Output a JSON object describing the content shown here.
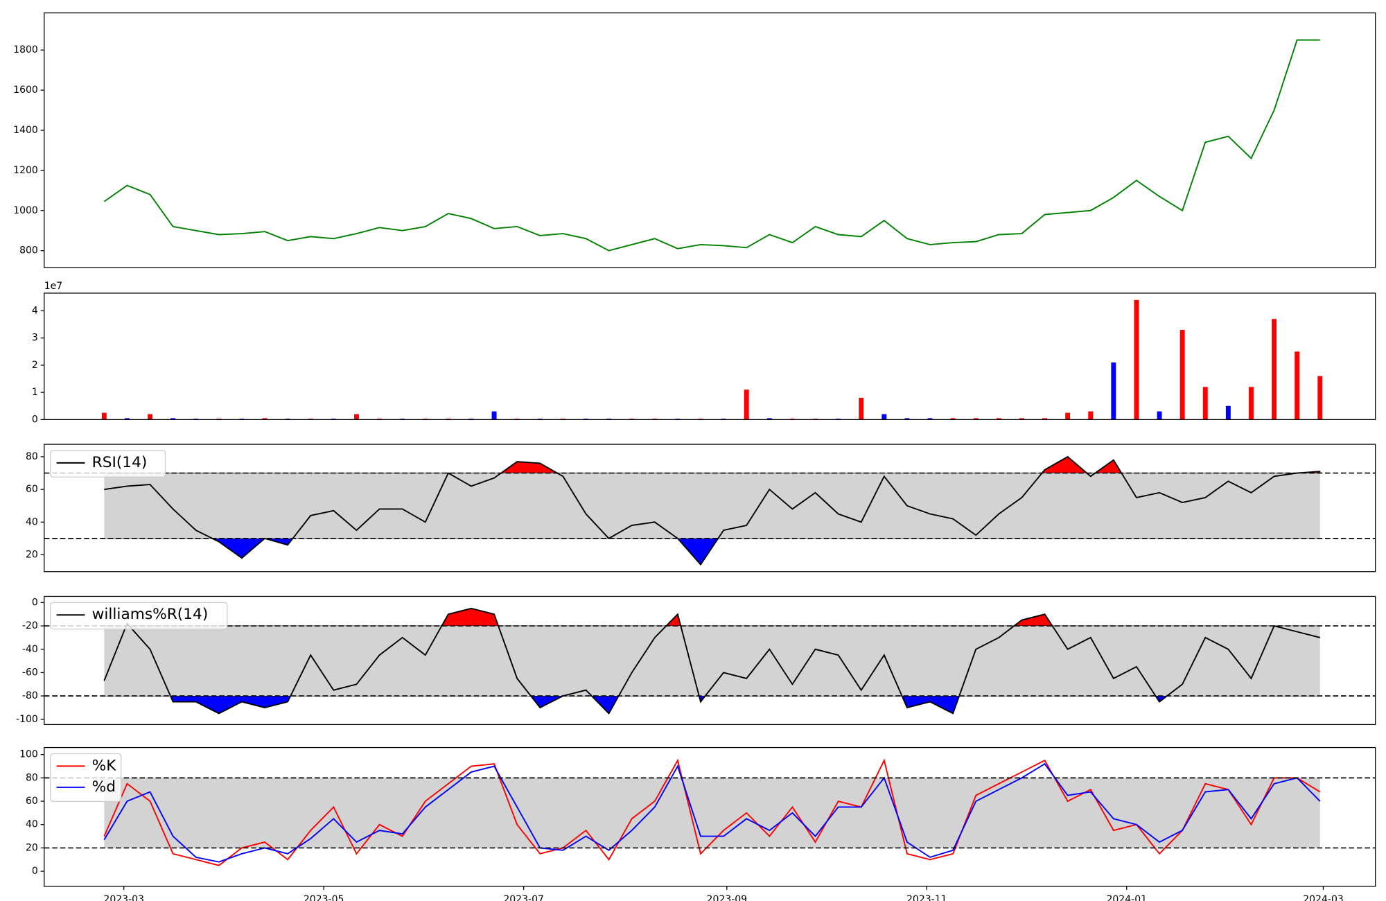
{
  "chart_data": [
    {
      "type": "line",
      "x": [
        22,
        29,
        36,
        43,
        50,
        57,
        64,
        71,
        78,
        85,
        92,
        99,
        106,
        113,
        120,
        127,
        134,
        141,
        148,
        155,
        162,
        169,
        176,
        183,
        190,
        197,
        204,
        211,
        218,
        225,
        232,
        239,
        246,
        253,
        260,
        267,
        274,
        281,
        288,
        295,
        302,
        309,
        316,
        323,
        330,
        337,
        344,
        351,
        358,
        365,
        372,
        379,
        386,
        393
      ],
      "xlim": [
        3.7,
        409.9
      ],
      "ylim": [
        716,
        1985
      ],
      "yticks": [
        800,
        1000,
        1200,
        1400,
        1600,
        1800
      ],
      "series": [
        {
          "color": "#008000",
          "values": [
            1045,
            1125,
            1080,
            920,
            900,
            880,
            885,
            895,
            850,
            870,
            860,
            885,
            915,
            900,
            920,
            985,
            960,
            910,
            920,
            875,
            885,
            860,
            800,
            830,
            860,
            810,
            830,
            825,
            815,
            880,
            840,
            920,
            880,
            870,
            950,
            860,
            830,
            840,
            845,
            880,
            885,
            980,
            990,
            1000,
            1065,
            1150,
            1070,
            1000,
            1340,
            1370,
            1260,
            1500,
            1850,
            1850
          ]
        }
      ]
    },
    {
      "type": "bar",
      "offset_label": "1e7",
      "x": [
        22,
        29,
        36,
        43,
        50,
        57,
        64,
        71,
        78,
        85,
        92,
        99,
        106,
        113,
        120,
        127,
        134,
        141,
        148,
        155,
        162,
        169,
        176,
        183,
        190,
        197,
        204,
        211,
        218,
        225,
        232,
        239,
        246,
        253,
        260,
        267,
        274,
        281,
        288,
        295,
        302,
        309,
        316,
        323,
        330,
        337,
        344,
        351,
        358,
        365,
        372,
        379,
        386,
        393
      ],
      "xlim": [
        3.7,
        409.9
      ],
      "ylim": [
        0,
        4.65
      ],
      "yticks": [
        0,
        1,
        2,
        3,
        4
      ],
      "values": [
        0.25,
        0.05,
        0.2,
        0.05,
        0.03,
        0.03,
        0.03,
        0.05,
        0.03,
        0.03,
        0.03,
        0.2,
        0.03,
        0.03,
        0.03,
        0.03,
        0.03,
        0.3,
        0.03,
        0.03,
        0.03,
        0.03,
        0.03,
        0.03,
        0.03,
        0.03,
        0.03,
        0.03,
        1.1,
        0.05,
        0.03,
        0.03,
        0.03,
        0.8,
        0.2,
        0.05,
        0.05,
        0.05,
        0.05,
        0.05,
        0.05,
        0.05,
        0.25,
        0.3,
        2.1,
        4.4,
        0.3,
        3.3,
        1.2,
        0.5,
        1.2,
        3.7,
        2.5,
        1.6
      ],
      "colors": [
        "red",
        "blue",
        "red",
        "blue",
        "blue",
        "red",
        "blue",
        "red",
        "blue",
        "red",
        "blue",
        "red",
        "red",
        "blue",
        "red",
        "red",
        "blue",
        "blue",
        "red",
        "blue",
        "red",
        "blue",
        "blue",
        "red",
        "red",
        "blue",
        "red",
        "blue",
        "red",
        "blue",
        "red",
        "red",
        "blue",
        "red",
        "blue",
        "blue",
        "blue",
        "red",
        "red",
        "red",
        "red",
        "red",
        "red",
        "red",
        "blue",
        "red",
        "blue",
        "red",
        "red",
        "blue",
        "red",
        "red",
        "red",
        "red"
      ]
    },
    {
      "type": "line",
      "bands": [
        30,
        70
      ],
      "band_color": "#d3d3d3",
      "extreme_colors": [
        "red",
        "blue"
      ],
      "x": [
        22,
        29,
        36,
        43,
        50,
        57,
        64,
        71,
        78,
        85,
        92,
        99,
        106,
        113,
        120,
        127,
        134,
        141,
        148,
        155,
        162,
        169,
        176,
        183,
        190,
        197,
        204,
        211,
        218,
        225,
        232,
        239,
        246,
        253,
        260,
        267,
        274,
        281,
        288,
        295,
        302,
        309,
        316,
        323,
        330,
        337,
        344,
        351,
        358,
        365,
        372,
        379,
        386,
        393
      ],
      "xlim": [
        3.7,
        409.9
      ],
      "ylim": [
        9.7,
        87.6
      ],
      "yticks": [
        20,
        40,
        60,
        80
      ],
      "series": [
        {
          "name": "RSI(14)",
          "color": "#000000",
          "values": [
            60,
            62,
            63,
            48,
            35,
            28,
            18,
            30,
            26,
            44,
            47,
            35,
            48,
            48,
            40,
            70,
            62,
            67,
            77,
            76,
            68,
            45,
            30,
            38,
            40,
            30,
            14,
            35,
            38,
            60,
            48,
            58,
            45,
            40,
            68,
            50,
            45,
            42,
            32,
            45,
            55,
            72,
            80,
            68,
            78,
            55,
            58,
            52,
            55,
            65,
            58,
            68,
            70,
            71
          ]
        }
      ]
    },
    {
      "type": "line",
      "bands": [
        -80,
        -20
      ],
      "band_color": "#d3d3d3",
      "extreme_colors": [
        "red",
        "blue"
      ],
      "x": [
        22,
        29,
        36,
        43,
        50,
        57,
        64,
        71,
        78,
        85,
        92,
        99,
        106,
        113,
        120,
        127,
        134,
        141,
        148,
        155,
        162,
        169,
        176,
        183,
        190,
        197,
        204,
        211,
        218,
        225,
        232,
        239,
        246,
        253,
        260,
        267,
        274,
        281,
        288,
        295,
        302,
        309,
        316,
        323,
        330,
        337,
        344,
        351,
        358,
        365,
        372,
        379,
        386,
        393
      ],
      "xlim": [
        3.7,
        409.9
      ],
      "ylim": [
        -104.5,
        5.3
      ],
      "yticks": [
        0,
        -20,
        -40,
        -60,
        -80,
        -100
      ],
      "series": [
        {
          "name": "williams%R(14)",
          "color": "#000000",
          "values": [
            -67,
            -18,
            -40,
            -85,
            -85,
            -95,
            -85,
            -90,
            -85,
            -45,
            -75,
            -70,
            -45,
            -30,
            -45,
            -10,
            -5,
            -10,
            -65,
            -90,
            -80,
            -75,
            -95,
            -60,
            -30,
            -10,
            -85,
            -60,
            -65,
            -40,
            -70,
            -40,
            -45,
            -75,
            -45,
            -90,
            -85,
            -95,
            -40,
            -30,
            -15,
            -10,
            -40,
            -30,
            -65,
            -55,
            -85,
            -70,
            -30,
            -40,
            -65,
            -20,
            -25,
            -30
          ]
        }
      ]
    },
    {
      "type": "line",
      "bands": [
        20,
        80
      ],
      "band_color": "#d3d3d3",
      "x": [
        22,
        29,
        36,
        43,
        50,
        57,
        64,
        71,
        78,
        85,
        92,
        99,
        106,
        113,
        120,
        127,
        134,
        141,
        148,
        155,
        162,
        169,
        176,
        183,
        190,
        197,
        204,
        211,
        218,
        225,
        232,
        239,
        246,
        253,
        260,
        267,
        274,
        281,
        288,
        295,
        302,
        309,
        316,
        323,
        330,
        337,
        344,
        351,
        358,
        365,
        372,
        379,
        386,
        393
      ],
      "xlim": [
        3.7,
        409.9
      ],
      "ylim": [
        -12.9,
        106
      ],
      "xticks": [
        {
          "value": 28,
          "label": "2023-03"
        },
        {
          "value": 89,
          "label": "2023-05"
        },
        {
          "value": 150,
          "label": "2023-07"
        },
        {
          "value": 212,
          "label": "2023-09"
        },
        {
          "value": 273,
          "label": "2023-11"
        },
        {
          "value": 334,
          "label": "2024-01"
        },
        {
          "value": 394,
          "label": "2024-03"
        }
      ],
      "yticks": [
        0,
        20,
        40,
        60,
        80,
        100
      ],
      "series": [
        {
          "name": "%K",
          "color": "#ff0000",
          "values": [
            30,
            75,
            60,
            15,
            10,
            5,
            20,
            25,
            10,
            35,
            55,
            15,
            40,
            30,
            60,
            75,
            90,
            92,
            40,
            15,
            20,
            35,
            10,
            45,
            60,
            95,
            15,
            35,
            50,
            30,
            55,
            25,
            60,
            55,
            95,
            15,
            10,
            15,
            65,
            75,
            85,
            95,
            60,
            70,
            35,
            40,
            15,
            35,
            75,
            70,
            40,
            80,
            80,
            68
          ]
        },
        {
          "name": "%d",
          "color": "#0000ff",
          "values": [
            27,
            60,
            68,
            30,
            12,
            8,
            15,
            20,
            15,
            28,
            45,
            25,
            35,
            32,
            55,
            70,
            85,
            90,
            55,
            20,
            18,
            30,
            18,
            35,
            55,
            90,
            30,
            30,
            45,
            35,
            50,
            30,
            55,
            55,
            80,
            25,
            12,
            18,
            60,
            70,
            80,
            92,
            65,
            68,
            45,
            40,
            25,
            35,
            68,
            70,
            45,
            75,
            80,
            60
          ]
        }
      ]
    }
  ]
}
